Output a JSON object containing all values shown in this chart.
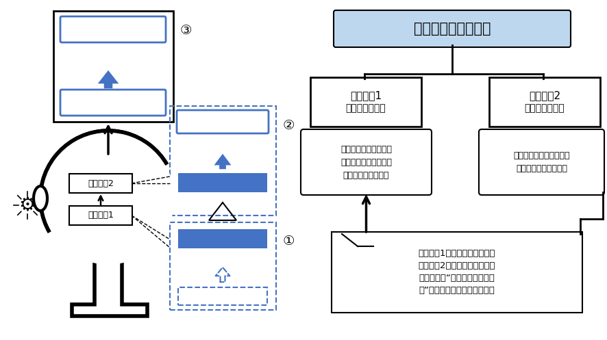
{
  "bg_color": "#ffffff",
  "blue_fill": "#4472C4",
  "blue_light": "#BDD7EE",
  "blue_border": "#4472C4",
  "black": "#000000",
  "title_text": "脳の判断メカニズム",
  "sys1_label": "システム1",
  "sys2_label": "システム2",
  "sys1_sub": "（直感的判断）",
  "sys2_sub": "（論理的判断）",
  "sys1_desc": "判断スピードは非常に\n速いが，複雑な判断は\n出来ない（誤る）。",
  "sys2_desc": "判断スピードは遅いが，\n論理的に判断できる。",
  "bottom_desc": "システム1が作り出した結論に\nシステム2が後付けの論理を作\nり出して，“論知的思考を行っ\nた”ように思いこんでしまう。",
  "head_sys2_label": "システム2",
  "head_sys1_label": "システム1",
  "num1": "①",
  "num2": "②",
  "num3": "③"
}
